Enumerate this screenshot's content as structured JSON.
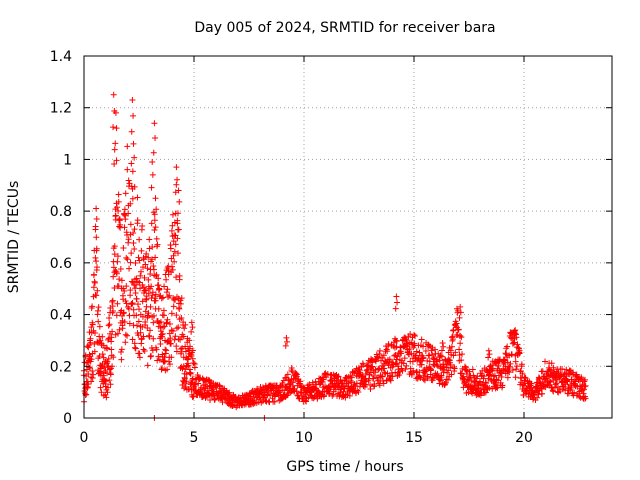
{
  "chart_data": {
    "type": "scatter",
    "title": "Day 005 of 2024, SRMTID for receiver bara",
    "xlabel": "GPS time / hours",
    "ylabel": "SRMTID / TECUs",
    "xlim": [
      0,
      24
    ],
    "ylim": [
      0,
      1.4
    ],
    "grid": true,
    "marker": "+",
    "color": "#ff0000",
    "x_ticks": [
      {
        "value": 0,
        "label": "0"
      },
      {
        "value": 5,
        "label": "5"
      },
      {
        "value": 10,
        "label": "10"
      },
      {
        "value": 15,
        "label": "15"
      },
      {
        "value": 20,
        "label": "20"
      }
    ],
    "y_ticks": [
      {
        "value": 0,
        "label": "0"
      },
      {
        "value": 0.2,
        "label": "0.2"
      },
      {
        "value": 0.4,
        "label": "0.4"
      },
      {
        "value": 0.6,
        "label": "0.6"
      },
      {
        "value": 0.8,
        "label": "0.8"
      },
      {
        "value": 1.0,
        "label": "1"
      },
      {
        "value": 1.2,
        "label": "1.2"
      },
      {
        "value": 1.4,
        "label": "1.4"
      }
    ],
    "series": [
      {
        "name": "SRMTID",
        "time_range_hours": [
          0,
          22.8
        ],
        "sample_interval_hours": 0.025,
        "baseline_profile": [
          [
            0.0,
            0.14
          ],
          [
            0.2,
            0.2
          ],
          [
            0.4,
            0.3
          ],
          [
            0.5,
            0.55
          ],
          [
            0.7,
            0.25
          ],
          [
            1.0,
            0.16
          ],
          [
            1.3,
            0.35
          ],
          [
            1.4,
            0.75
          ],
          [
            1.7,
            0.45
          ],
          [
            2.0,
            0.7
          ],
          [
            2.3,
            0.6
          ],
          [
            2.6,
            0.5
          ],
          [
            2.9,
            0.4
          ],
          [
            3.2,
            0.6
          ],
          [
            3.5,
            0.3
          ],
          [
            3.8,
            0.4
          ],
          [
            4.2,
            0.6
          ],
          [
            4.5,
            0.25
          ],
          [
            4.8,
            0.2
          ],
          [
            5.2,
            0.12
          ],
          [
            6.0,
            0.1
          ],
          [
            7.0,
            0.06
          ],
          [
            8.0,
            0.09
          ],
          [
            9.0,
            0.1
          ],
          [
            9.5,
            0.15
          ],
          [
            10.0,
            0.09
          ],
          [
            11.0,
            0.13
          ],
          [
            12.0,
            0.12
          ],
          [
            12.5,
            0.15
          ],
          [
            13.0,
            0.17
          ],
          [
            14.0,
            0.22
          ],
          [
            14.5,
            0.25
          ],
          [
            15.0,
            0.24
          ],
          [
            15.5,
            0.22
          ],
          [
            16.0,
            0.2
          ],
          [
            16.5,
            0.17
          ],
          [
            17.0,
            0.33
          ],
          [
            17.3,
            0.15
          ],
          [
            18.0,
            0.13
          ],
          [
            18.5,
            0.16
          ],
          [
            19.0,
            0.18
          ],
          [
            19.5,
            0.27
          ],
          [
            19.8,
            0.2
          ],
          [
            20.0,
            0.12
          ],
          [
            20.5,
            0.09
          ],
          [
            21.0,
            0.17
          ],
          [
            21.5,
            0.15
          ],
          [
            22.0,
            0.14
          ],
          [
            22.8,
            0.11
          ]
        ],
        "peaks": [
          [
            0.55,
            0.81
          ],
          [
            1.35,
            1.25
          ],
          [
            1.45,
            1.18
          ],
          [
            2.2,
            1.23
          ],
          [
            2.25,
            1.06
          ],
          [
            3.1,
            0.99
          ],
          [
            3.2,
            1.14
          ],
          [
            3.25,
            0.85
          ],
          [
            4.2,
            0.97
          ],
          [
            4.3,
            0.88
          ],
          [
            4.9,
            0.37
          ],
          [
            9.2,
            0.31
          ],
          [
            14.2,
            0.47
          ],
          [
            17.1,
            0.43
          ],
          [
            19.6,
            0.34
          ],
          [
            16.3,
            0.29
          ],
          [
            18.4,
            0.26
          ]
        ],
        "notable_lows": [
          [
            3.2,
            0.0
          ],
          [
            8.2,
            0.0
          ]
        ]
      }
    ]
  }
}
